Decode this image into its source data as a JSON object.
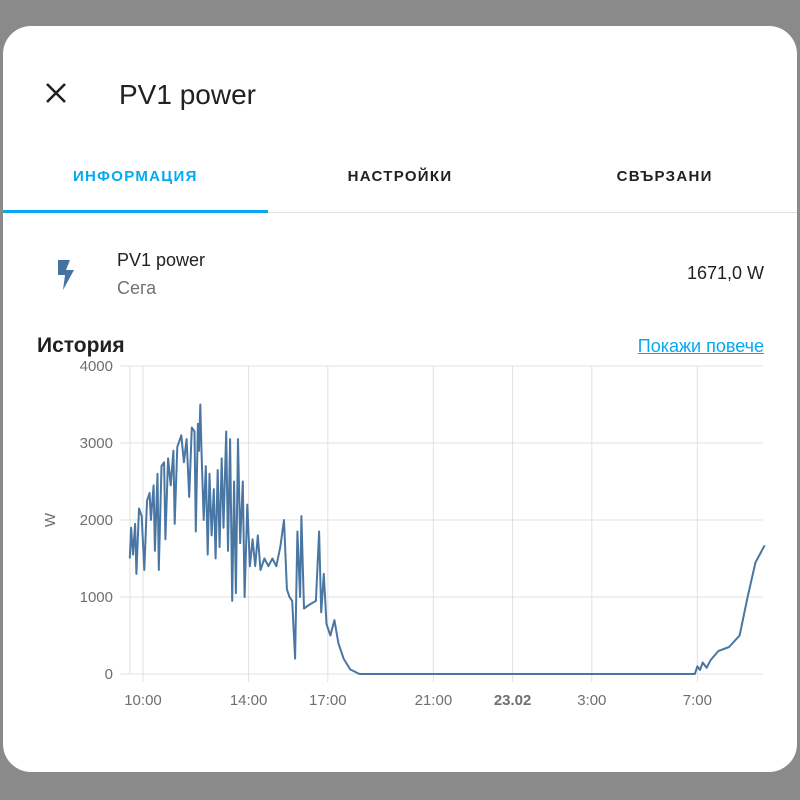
{
  "dialog": {
    "title": "PV1 power",
    "close_icon": "close-icon"
  },
  "tabs": [
    {
      "label": "ИНФОРМАЦИЯ",
      "active": true
    },
    {
      "label": "НАСТРОЙКИ",
      "active": false
    },
    {
      "label": "СВЪРЗАНИ",
      "active": false
    }
  ],
  "entity": {
    "icon": "flash-icon",
    "name": "PV1 power",
    "secondary": "Сега",
    "value": "1671,0 W"
  },
  "history": {
    "heading": "История",
    "show_more": "Покажи повече"
  },
  "colors": {
    "accent": "#03a9f4",
    "line": "#4a76a3"
  },
  "chart_data": {
    "type": "line",
    "ylabel": "W",
    "ylim": [
      0,
      4000
    ],
    "yticks": [
      "0",
      "1000",
      "2000",
      "3000",
      "4000"
    ],
    "ytick_values": [
      0,
      1000,
      2000,
      3000,
      4000
    ],
    "x_unit": "hours since start of 22.02",
    "xlim": [
      9.5,
      33.55
    ],
    "xticks": [
      "10:00",
      "14:00",
      "17:00",
      "21:00",
      "23.02",
      "3:00",
      "7:00"
    ],
    "xtick_values": [
      10,
      14,
      17,
      21,
      24,
      27,
      31
    ],
    "series": [
      {
        "name": "PV1 power",
        "points": [
          [
            9.5,
            1500
          ],
          [
            9.55,
            1900
          ],
          [
            9.62,
            1550
          ],
          [
            9.7,
            1950
          ],
          [
            9.75,
            1300
          ],
          [
            9.85,
            2150
          ],
          [
            9.95,
            2050
          ],
          [
            10.05,
            1350
          ],
          [
            10.15,
            2250
          ],
          [
            10.25,
            2350
          ],
          [
            10.3,
            2000
          ],
          [
            10.4,
            2450
          ],
          [
            10.45,
            1600
          ],
          [
            10.55,
            2600
          ],
          [
            10.6,
            1350
          ],
          [
            10.7,
            2700
          ],
          [
            10.8,
            2750
          ],
          [
            10.85,
            1750
          ],
          [
            10.95,
            2800
          ],
          [
            11.05,
            2450
          ],
          [
            11.15,
            2900
          ],
          [
            11.2,
            1950
          ],
          [
            11.3,
            2950
          ],
          [
            11.45,
            3100
          ],
          [
            11.55,
            2750
          ],
          [
            11.65,
            3050
          ],
          [
            11.75,
            2300
          ],
          [
            11.85,
            3200
          ],
          [
            11.95,
            3150
          ],
          [
            12.0,
            1850
          ],
          [
            12.08,
            3250
          ],
          [
            12.12,
            2900
          ],
          [
            12.17,
            3500
          ],
          [
            12.22,
            2850
          ],
          [
            12.3,
            2000
          ],
          [
            12.38,
            2700
          ],
          [
            12.45,
            1550
          ],
          [
            12.52,
            2600
          ],
          [
            12.6,
            1800
          ],
          [
            12.68,
            2400
          ],
          [
            12.75,
            1500
          ],
          [
            12.83,
            2650
          ],
          [
            12.9,
            1650
          ],
          [
            12.98,
            2800
          ],
          [
            13.05,
            1900
          ],
          [
            13.15,
            3150
          ],
          [
            13.22,
            1600
          ],
          [
            13.3,
            3050
          ],
          [
            13.38,
            950
          ],
          [
            13.45,
            2500
          ],
          [
            13.52,
            1050
          ],
          [
            13.6,
            3050
          ],
          [
            13.68,
            1700
          ],
          [
            13.78,
            2500
          ],
          [
            13.85,
            1000
          ],
          [
            13.95,
            2200
          ],
          [
            14.05,
            1400
          ],
          [
            14.15,
            1750
          ],
          [
            14.25,
            1400
          ],
          [
            14.35,
            1800
          ],
          [
            14.45,
            1350
          ],
          [
            14.6,
            1500
          ],
          [
            14.75,
            1400
          ],
          [
            14.9,
            1500
          ],
          [
            15.05,
            1400
          ],
          [
            15.2,
            1650
          ],
          [
            15.34,
            2000
          ],
          [
            15.45,
            1100
          ],
          [
            15.55,
            1000
          ],
          [
            15.65,
            950
          ],
          [
            15.76,
            200
          ],
          [
            15.85,
            1850
          ],
          [
            15.95,
            1000
          ],
          [
            16.0,
            2050
          ],
          [
            16.1,
            850
          ],
          [
            16.3,
            900
          ],
          [
            16.55,
            950
          ],
          [
            16.67,
            1850
          ],
          [
            16.75,
            800
          ],
          [
            16.85,
            1300
          ],
          [
            16.95,
            650
          ],
          [
            17.1,
            500
          ],
          [
            17.25,
            700
          ],
          [
            17.4,
            400
          ],
          [
            17.6,
            200
          ],
          [
            17.85,
            60
          ],
          [
            18.2,
            0
          ],
          [
            30.9,
            0
          ],
          [
            31.0,
            100
          ],
          [
            31.1,
            50
          ],
          [
            31.2,
            150
          ],
          [
            31.35,
            80
          ],
          [
            31.5,
            180
          ],
          [
            31.8,
            300
          ],
          [
            32.2,
            350
          ],
          [
            32.6,
            500
          ],
          [
            32.9,
            1000
          ],
          [
            33.2,
            1450
          ],
          [
            33.55,
            1671
          ]
        ]
      }
    ]
  }
}
